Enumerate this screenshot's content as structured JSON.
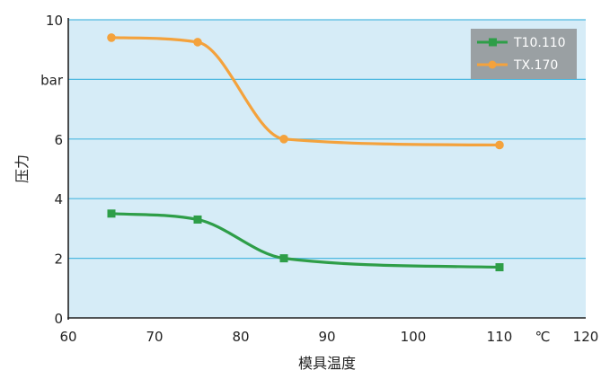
{
  "chart_data": {
    "type": "line",
    "title": "",
    "xlabel": "模具温度",
    "ylabel": "压力",
    "xlim": [
      60,
      120
    ],
    "ylim": [
      0,
      10
    ],
    "x_ticks": [
      "60",
      "70",
      "80",
      "90",
      "100",
      "110",
      "℃",
      "120"
    ],
    "y_ticks": [
      "0",
      "2",
      "4",
      "6",
      "bar",
      "10"
    ],
    "grid": "horizontal",
    "legend_position": "top-right",
    "series": [
      {
        "name": "T10.110",
        "color": "#2e9e48",
        "marker": "square",
        "x": [
          65,
          75,
          85,
          110
        ],
        "y": [
          3.5,
          3.3,
          2.0,
          1.7
        ]
      },
      {
        "name": "TX.170",
        "color": "#f4a23c",
        "marker": "circle",
        "x": [
          65,
          75,
          85,
          110
        ],
        "y": [
          9.4,
          9.25,
          6.0,
          5.8
        ]
      }
    ],
    "colors": {
      "plot_background": "#d6ecf7",
      "gridline": "#4db8e0",
      "legend_background": "#9aa0a3"
    }
  }
}
